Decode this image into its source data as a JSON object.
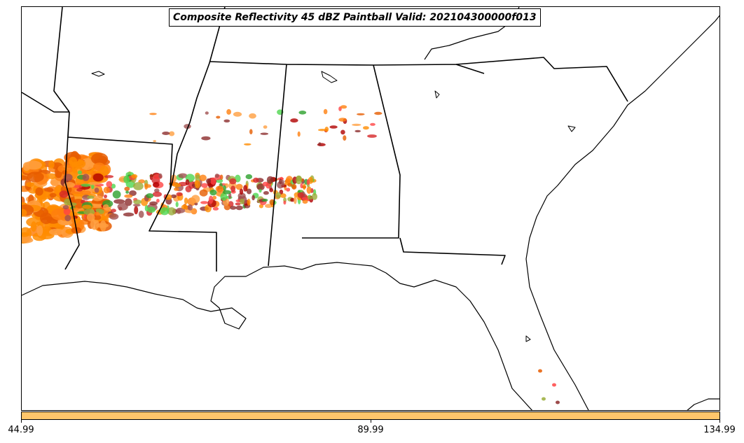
{
  "title": "Composite Reflectivity 45 dBZ Paintball Valid: 202104300000f013",
  "colorbar": {
    "color": "#ffc66b",
    "ticks": [
      "44.99",
      "89.99",
      "134.99"
    ]
  },
  "paintball_colors": [
    "#ff8c00",
    "#ff7f0e",
    "#e65c00",
    "#ff9f40",
    "#d62728",
    "#b00000",
    "#8c2d2d",
    "#2ca02c",
    "#4fd64f",
    "#9aad3a",
    "#a05050",
    "#ff4444"
  ],
  "map_features": [
    "state-boundaries",
    "coastline",
    "gulf-of-mexico",
    "atlantic-ocean"
  ]
}
